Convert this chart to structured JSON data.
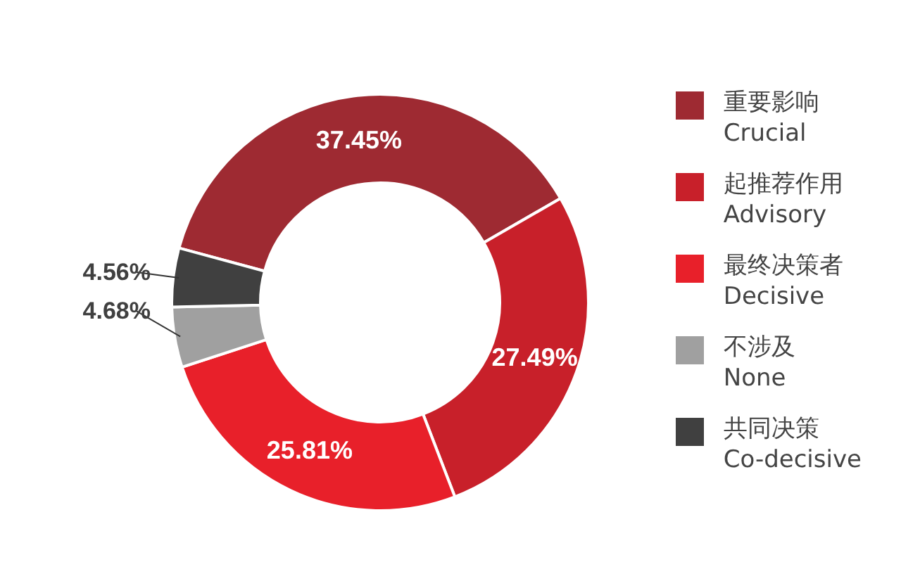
{
  "chart_data": {
    "type": "donut",
    "categories": [
      "重要影响\nCrucial",
      "起推荐作用\nAdvisory",
      "最终决策者\nDecisive",
      "不涉及\nNone",
      "共同决策\nCo-decisive"
    ],
    "values": [
      37.45,
      27.49,
      25.81,
      4.68,
      4.56
    ],
    "colors": [
      "#9e2a32",
      "#c8202a",
      "#e8202a",
      "#a0a0a0",
      "#404040"
    ],
    "value_labels": [
      "37.45%",
      "27.49%",
      "25.81%",
      "4.68%",
      "4.56%"
    ],
    "legend": "right"
  }
}
